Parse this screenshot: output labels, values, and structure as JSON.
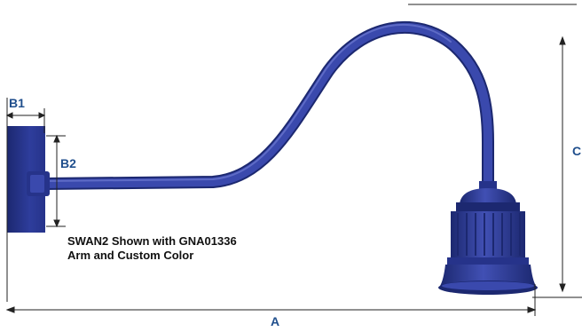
{
  "dimensions": {
    "b1": "B1",
    "b2": "B2",
    "c": "C",
    "a": "A"
  },
  "caption": {
    "line1": "SWAN2 Shown with GNA01336",
    "line2": "Arm and Custom Color"
  },
  "colors": {
    "fixture": "#2e3d9c",
    "fixture_dark": "#1c2870",
    "fixture_light": "#5563c4",
    "label": "#1f4e8c",
    "dimension_line": "#222222"
  }
}
